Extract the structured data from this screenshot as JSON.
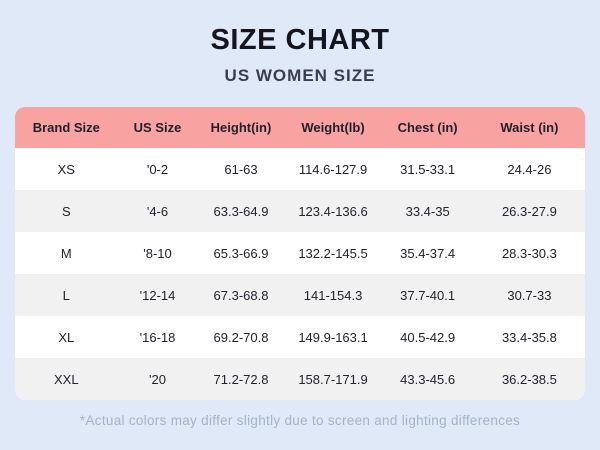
{
  "page": {
    "title": "SIZE CHART",
    "subtitle": "US WOMEN SIZE",
    "footnote": "*Actual colors may differ slightly due to screen and lighting differences"
  },
  "colors": {
    "background": "#dfe9f8",
    "table_header_bg": "#f9a2a2",
    "row_white_bg": "#ffffff",
    "row_alt_bg": "#f1f1f2",
    "title_text": "#15151f",
    "subtitle_text": "#3a3f4b",
    "footnote_text": "#a5b3c9"
  },
  "chart_data": {
    "type": "table",
    "title": "SIZE CHART",
    "subtitle": "US WOMEN SIZE",
    "columns": [
      "Brand Size",
      "US Size",
      "Height(in)",
      "Weight(lb)",
      "Chest (in)",
      "Waist (in)"
    ],
    "rows": [
      [
        "XS",
        "'0-2",
        "61-63",
        "114.6-127.9",
        "31.5-33.1",
        "24.4-26"
      ],
      [
        "S",
        "'4-6",
        "63.3-64.9",
        "123.4-136.6",
        "33.4-35",
        "26.3-27.9"
      ],
      [
        "M",
        "'8-10",
        "65.3-66.9",
        "132.2-145.5",
        "35.4-37.4",
        "28.3-30.3"
      ],
      [
        "L",
        "'12-14",
        "67.3-68.8",
        "141-154.3",
        "37.7-40.1",
        "30.7-33"
      ],
      [
        "XL",
        "'16-18",
        "69.2-70.8",
        "149.9-163.1",
        "40.5-42.9",
        "33.4-35.8"
      ],
      [
        "XXL",
        "'20",
        "71.2-72.8",
        "158.7-171.9",
        "43.3-45.6",
        "36.2-38.5"
      ]
    ]
  }
}
